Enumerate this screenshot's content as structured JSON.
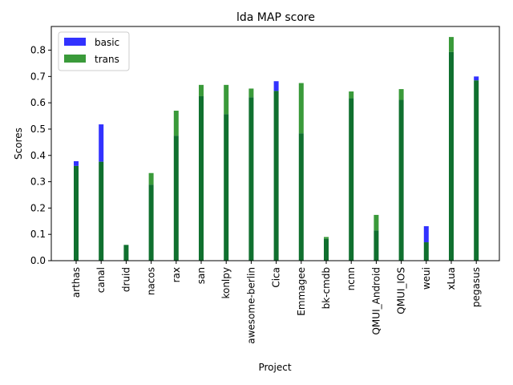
{
  "chart_data": {
    "type": "bar",
    "title": "lda MAP score",
    "xlabel": "Project",
    "ylabel": "Scores",
    "ylim": [
      0,
      0.89
    ],
    "yticks": [
      0.0,
      0.1,
      0.2,
      0.3,
      0.4,
      0.5,
      0.6,
      0.7,
      0.8
    ],
    "categories": [
      "arthas",
      "canal",
      "druid",
      "nacos",
      "rax",
      "san",
      "konlpy",
      "awesome-berlin",
      "Cica",
      "Emmagee",
      "bk-cmdb",
      "ncnn",
      "QMUI_Android",
      "QMUI_IOS",
      "weui",
      "xLua",
      "pegasus"
    ],
    "series": [
      {
        "name": "basic",
        "color": "#3232ff",
        "values": [
          0.378,
          0.518,
          0.06,
          0.289,
          0.475,
          0.625,
          0.557,
          0.621,
          0.682,
          0.484,
          0.083,
          0.617,
          0.115,
          0.611,
          0.131,
          0.793,
          0.7
        ]
      },
      {
        "name": "trans",
        "color": "#3a9a3a",
        "values": [
          0.36,
          0.376,
          0.06,
          0.333,
          0.57,
          0.668,
          0.668,
          0.654,
          0.645,
          0.675,
          0.09,
          0.643,
          0.174,
          0.652,
          0.07,
          0.85,
          0.685
        ]
      }
    ],
    "overlap_color": "#10702f",
    "legend": {
      "placement": "upper-left",
      "entries": [
        "basic",
        "trans"
      ]
    },
    "grid": false
  }
}
